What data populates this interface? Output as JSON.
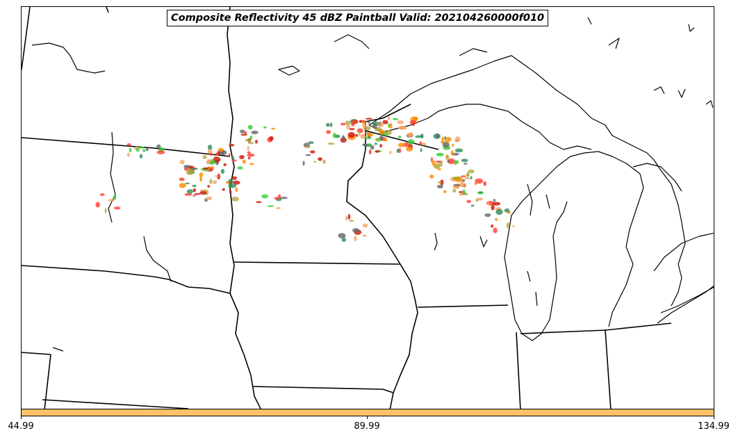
{
  "title": "Composite Reflectivity 45 dBZ Paintball Valid: 202104260000f010",
  "colorbar": {
    "color": "#ffc266",
    "ticks": [
      "44.99",
      "89.99",
      "134.99"
    ]
  },
  "map": {
    "region": "Upper Midwest and Great Lakes",
    "border_color": "#000000",
    "paintball_colors": [
      "#ff3b30",
      "#ff8a00",
      "#33cc33",
      "#cc1100",
      "#666666",
      "#b5a642",
      "#2e8b57",
      "#f4a460"
    ]
  }
}
